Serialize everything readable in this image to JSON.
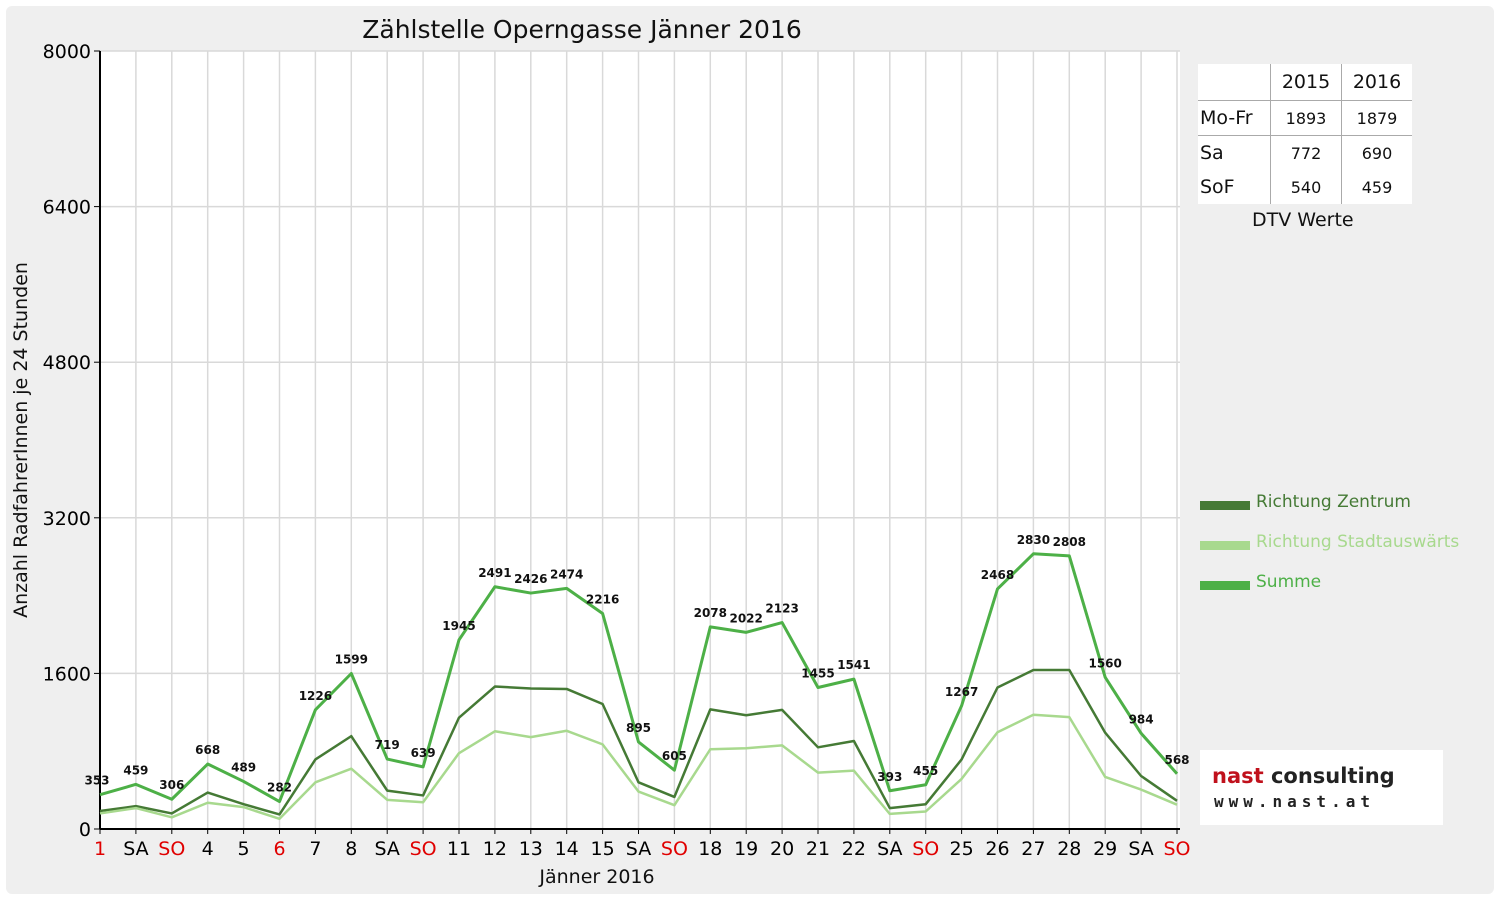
{
  "chart_data": {
    "type": "line",
    "title": "Zählstelle Operngasse Jänner 2016",
    "xlabel": "Jänner 2016",
    "ylabel": "Anzahl RadfahrerInnen je 24 Stunden",
    "ylim": [
      0,
      8000
    ],
    "yticks": [
      0,
      1600,
      3200,
      4800,
      6400,
      8000
    ],
    "grid": true,
    "legend_position": "right",
    "categories": [
      "1",
      "SA",
      "SO",
      "4",
      "5",
      "6",
      "7",
      "8",
      "SA",
      "SO",
      "11",
      "12",
      "13",
      "14",
      "15",
      "SA",
      "SO",
      "18",
      "19",
      "20",
      "21",
      "22",
      "SA",
      "SO",
      "25",
      "26",
      "27",
      "28",
      "29",
      "SA",
      "SO"
    ],
    "red_categories": [
      0,
      2,
      5,
      9,
      16,
      23,
      30
    ],
    "series": [
      {
        "name": "Richtung Zentrum",
        "color": "#457a35",
        "values": [
          185,
          235,
          160,
          375,
          255,
          150,
          715,
          955,
          395,
          345,
          1145,
          1465,
          1445,
          1440,
          1285,
          480,
          330,
          1230,
          1170,
          1225,
          840,
          905,
          215,
          255,
          715,
          1455,
          1635,
          1635,
          990,
          545,
          290
        ]
      },
      {
        "name": "Richtung Stadtauswärts",
        "color": "#a8d98e",
        "values": [
          160,
          215,
          120,
          270,
          225,
          105,
          480,
          620,
          300,
          275,
          780,
          1005,
          945,
          1010,
          870,
          385,
          245,
          820,
          830,
          860,
          580,
          600,
          155,
          180,
          515,
          995,
          1175,
          1150,
          535,
          405,
          250
        ]
      },
      {
        "name": "Summe",
        "color": "#4db047",
        "values": [
          353,
          459,
          306,
          668,
          489,
          282,
          1226,
          1599,
          719,
          639,
          1945,
          2491,
          2426,
          2474,
          2216,
          895,
          605,
          2078,
          2022,
          2123,
          1455,
          1541,
          393,
          455,
          1267,
          2468,
          2830,
          2808,
          1560,
          984,
          568
        ]
      }
    ],
    "data_labels": [
      "353",
      "459",
      "306",
      "668",
      "489",
      "282",
      "1226",
      "1599",
      "719",
      "639",
      "1945",
      "2491",
      "2426",
      "2474",
      "2216",
      "895",
      "605",
      "2078",
      "2022",
      "2123",
      "1455",
      "1541",
      "393",
      "455",
      "1267",
      "2468",
      "2830",
      "2808",
      "1560",
      "984",
      "568"
    ]
  },
  "dtv": {
    "header": [
      "",
      "2015",
      "2016"
    ],
    "rows": [
      {
        "label": "Mo-Fr",
        "v2015": "1893",
        "v2016": "1879"
      },
      {
        "label": "Sa",
        "v2015": "772",
        "v2016": "690"
      },
      {
        "label": "SoF",
        "v2015": "540",
        "v2016": "459"
      }
    ],
    "caption": "DTV Werte"
  },
  "logo": {
    "brand_red": "nast",
    "brand_rest": " consulting",
    "url": "www.nast.at"
  },
  "colors": {
    "background": "#efefef",
    "plot": "#ffffff",
    "grid": "#d9d9d9",
    "red_label": "#e00000",
    "logo_red": "#c0111c"
  }
}
